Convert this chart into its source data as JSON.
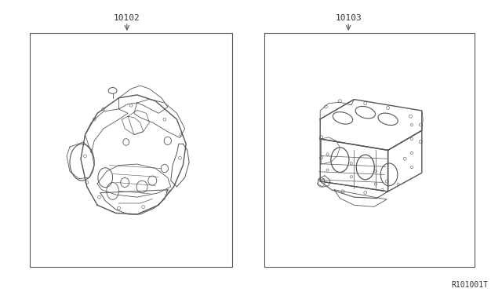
{
  "background_color": "#ffffff",
  "fig_width": 6.4,
  "fig_height": 3.72,
  "dpi": 100,
  "part1_label": "10102",
  "part2_label": "10103",
  "diagram_id": "R101001T",
  "line_color": "#555555",
  "text_color": "#333333",
  "label_fontsize": 8,
  "diagram_id_fontsize": 7
}
